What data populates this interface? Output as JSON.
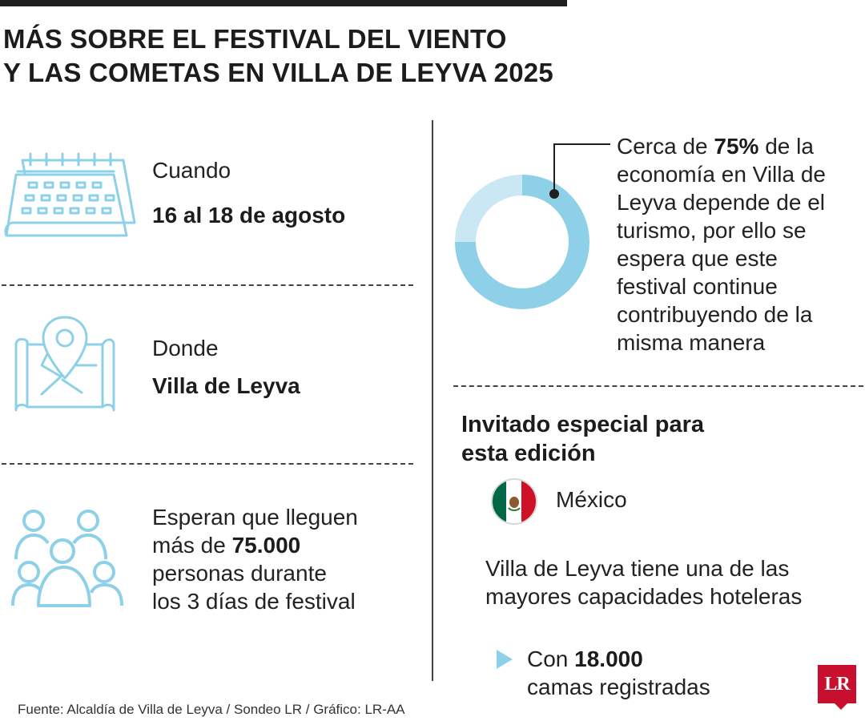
{
  "title": {
    "line1": "MÁS SOBRE EL FESTIVAL DEL VIENTO",
    "line2": "Y LAS COMETAS EN VILLA DE LEYVA 2025"
  },
  "when": {
    "label": "Cuando",
    "value": "16 al 18 de agosto",
    "icon": "calendar-icon"
  },
  "where": {
    "label": "Donde",
    "value": "Villa de Leyva",
    "icon": "map-pin-icon"
  },
  "attendance": {
    "line1": "Esperan que lleguen",
    "line2_prefix": "más de ",
    "line2_bold": "75.000",
    "line3": "personas durante",
    "line4": "los 3 días de festival",
    "icon": "people-icon"
  },
  "economy": {
    "percent": 75,
    "line1_prefix": "Cerca de ",
    "line1_bold": "75%",
    "line1_suffix": " de la",
    "line2": "economía en Villa de",
    "line3": "Leyva depende de el",
    "line4": "turismo, por ello se",
    "line5": "espera que este",
    "line6": "festival continue",
    "line7": "contribuyendo de la",
    "line8": "misma manera",
    "colors": {
      "main": "#8dd0e8",
      "rest": "#c9e8f4"
    }
  },
  "guest": {
    "heading_line1": "Invitado especial para",
    "heading_line2": "esta edición",
    "country": "México",
    "flag_icon": "mexico-flag-icon"
  },
  "hotel": {
    "line1": "Villa de Leyva tiene una de las",
    "line2": "mayores capacidades hoteleras",
    "beds_prefix": "Con ",
    "beds_bold": "18.000",
    "beds_line2": "camas registradas"
  },
  "source": "Fuente: Alcaldía de Villa de Leyva / Sondeo LR / Gráfico: LR-AA",
  "logo": "LR",
  "colors": {
    "icon": "#8dd0e8",
    "text": "#1f1f1f",
    "brand": "#c8102e"
  }
}
